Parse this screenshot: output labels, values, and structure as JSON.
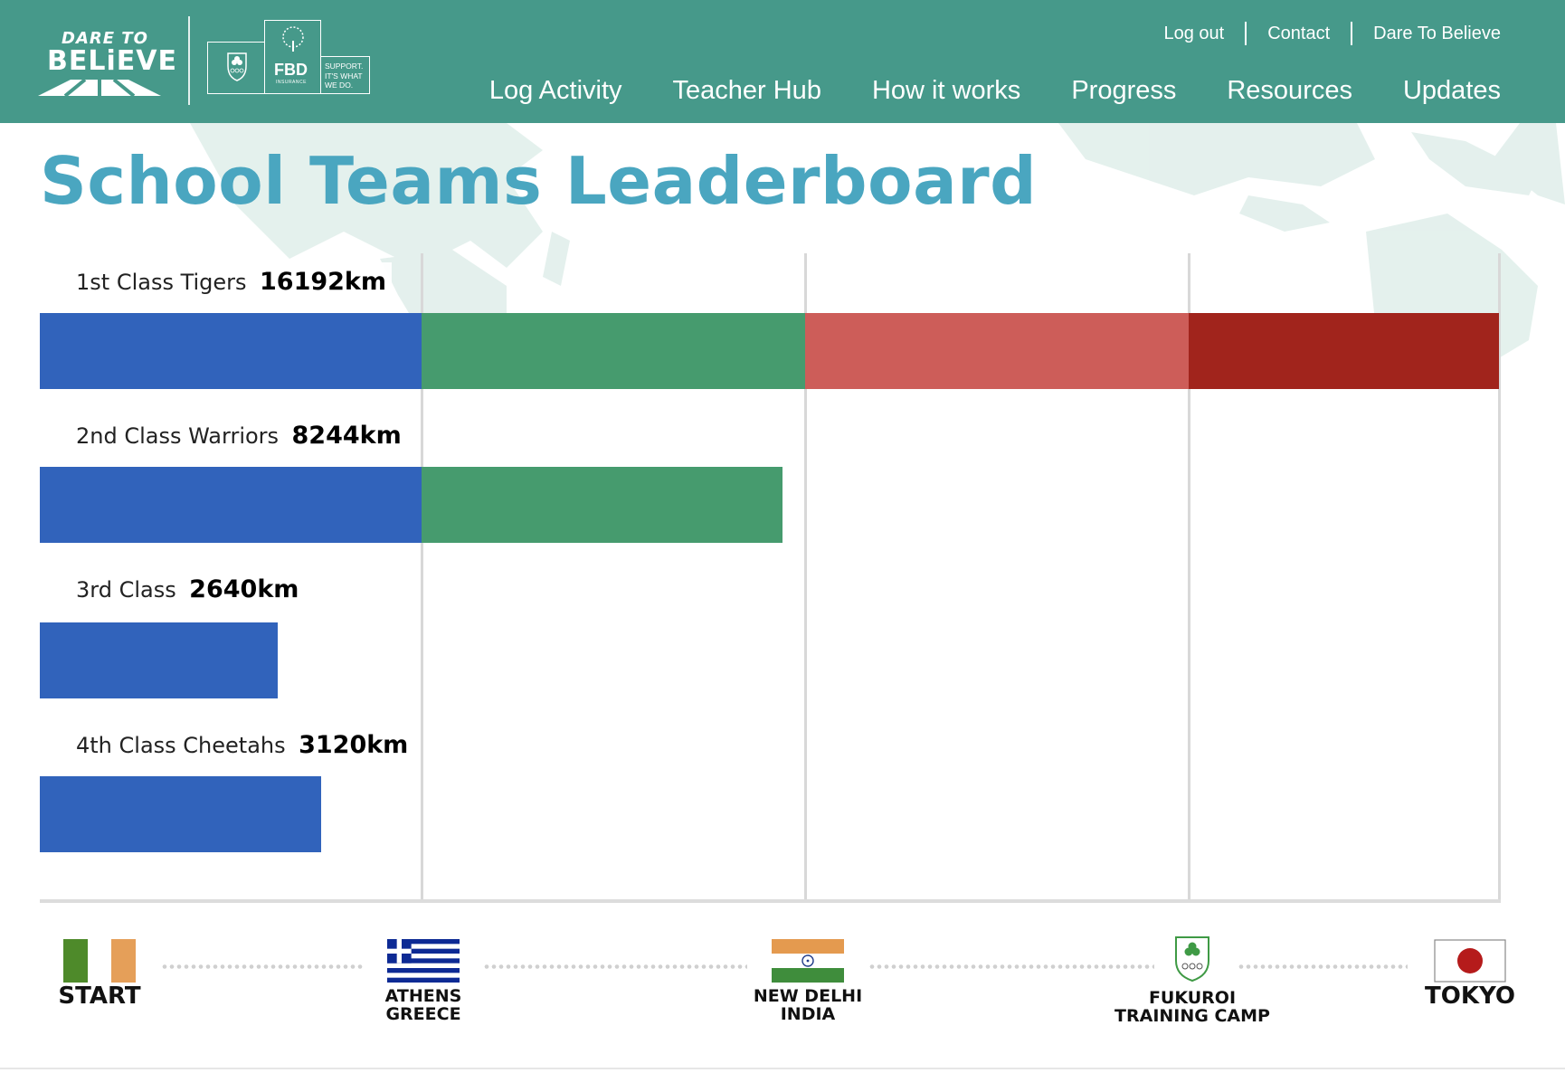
{
  "header": {
    "logo": {
      "line1": "DARE TO",
      "line2": "BELiEVE"
    },
    "sponsor": {
      "fbd": "FBD",
      "fbd_sub": "INSURANCE",
      "tagline": [
        "SUPPORT.",
        "IT'S WHAT",
        "WE DO."
      ]
    },
    "top_links": [
      "Log out",
      "Contact",
      "Dare To Believe"
    ],
    "main_nav": [
      "Log Activity",
      "Teacher Hub",
      "How it works",
      "Progress",
      "Resources",
      "Updates"
    ],
    "color": "#46998a"
  },
  "page_title": "School Teams Leaderboard",
  "chart_data": {
    "type": "bar",
    "orientation": "horizontal-stacked",
    "xlim": [
      0,
      16192
    ],
    "stage_colors": [
      "#3163bb",
      "#469b6e",
      "#cd5d59",
      "#a1241c"
    ],
    "teams": [
      {
        "name": "1st Class Tigers",
        "km_label": "16192km",
        "progress": 16192
      },
      {
        "name": "2nd Class Warriors",
        "km_label": "8244km",
        "progress": 8244
      },
      {
        "name": "3rd Class",
        "km_label": "2640km",
        "progress": 2640
      },
      {
        "name": "4th Class Cheetahs",
        "km_label": "3120km",
        "progress": 3120
      }
    ],
    "milestones": [
      {
        "line1": "START",
        "line2": "",
        "at": 0
      },
      {
        "line1": "ATHENS",
        "line2": "GREECE",
        "at": 4232
      },
      {
        "line1": "NEW DELHI",
        "line2": "INDIA",
        "at": 8490
      },
      {
        "line1": "FUKUROI",
        "line2": "TRAINING CAMP",
        "at": 12752
      },
      {
        "line1": "TOKYO",
        "line2": "",
        "at": 16192
      }
    ]
  }
}
